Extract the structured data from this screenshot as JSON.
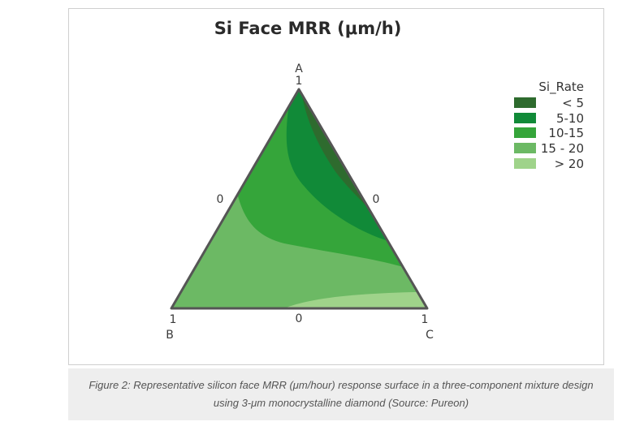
{
  "chart_data": {
    "type": "ternary-contour",
    "title": "Si Face MRR (μm/h)",
    "vertices": [
      {
        "name": "A",
        "tick": "1"
      },
      {
        "name": "B",
        "tick": "1"
      },
      {
        "name": "C",
        "tick": "1"
      }
    ],
    "edge_ticks": [
      "0",
      "0",
      "0"
    ],
    "legend": {
      "title": "Si_Rate",
      "placement": "top-right",
      "entries": [
        {
          "label": "< 5",
          "color": "#2e6b2e"
        },
        {
          "label": "5-10",
          "color": "#118a38"
        },
        {
          "label": "10-15",
          "color": "#35a53a"
        },
        {
          "label": "15 - 20",
          "color": "#6cb964"
        },
        {
          "label": "> 20",
          "color": "#9fd38a"
        }
      ]
    }
  },
  "caption": {
    "line1": "Figure 2: Representative silicon face MRR (μm/hour) response surface in a three-component mixture design",
    "line2": "using 3-μm monocrystalline diamond (Source: Pureon)"
  }
}
